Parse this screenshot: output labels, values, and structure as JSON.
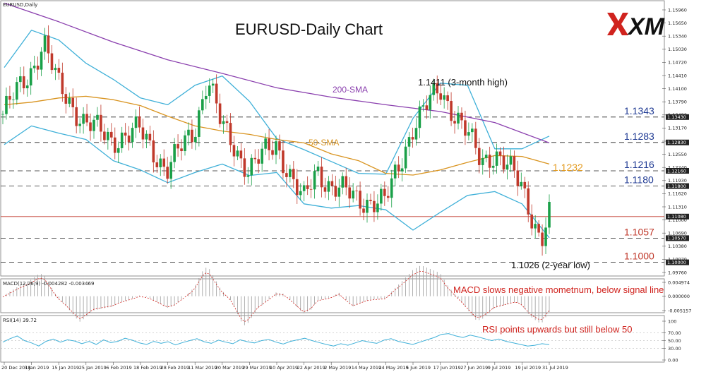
{
  "chart_data": [
    {
      "type": "candlestick",
      "symbol": "EURUSD,Daily",
      "title": "EURUSD-Daily Chart",
      "x_labels": [
        "20 Dec 2018",
        "3 Jan 2019",
        "15 Jan 2019",
        "25 Jan 2019",
        "6 Feb 2019",
        "18 Feb 2019",
        "28 Feb 2019",
        "11 Mar 2019",
        "20 Mar 2019",
        "29 Mar 2019",
        "10 Apr 2019",
        "22 Apr 2019",
        "2 May 2019",
        "14 May 2019",
        "24 May 2019",
        "5 Jun 2019",
        "17 Jun 2019",
        "27 Jun 2019",
        "9 Jul 2019",
        "19 Jul 2019",
        "31 Jul 2019"
      ],
      "y_ticks": [
        "1.15960",
        "1.15650",
        "1.15340",
        "1.15030",
        "1.14720",
        "1.14410",
        "1.14100",
        "1.13790",
        "1.13480",
        "1.13170",
        "1.12860",
        "1.12550",
        "1.12240",
        "1.11930",
        "1.11620",
        "1.11310",
        "1.11000",
        "1.10690",
        "1.10380",
        "1.10070",
        "1.09760"
      ],
      "ylim": [
        1.0976,
        1.1596
      ],
      "price_tags": [
        {
          "text": "1.13430",
          "value": 1.1343
        },
        {
          "text": "1.12830",
          "value": 1.1283
        },
        {
          "text": "1.12160",
          "value": 1.1216
        },
        {
          "text": "1.11800",
          "value": 1.118
        },
        {
          "text": "1.11080",
          "value": 1.1108
        },
        {
          "text": "1.10570",
          "value": 1.1057
        },
        {
          "text": "1.10000",
          "value": 1.1
        }
      ],
      "levels": [
        {
          "text": "1.1343",
          "value": 1.1343,
          "color": "#1f3a93"
        },
        {
          "text": "1.1283",
          "value": 1.1283,
          "color": "#1f3a93"
        },
        {
          "text": "1.1216",
          "value": 1.1216,
          "color": "#1f3a93"
        },
        {
          "text": "1.1180",
          "value": 1.118,
          "color": "#1f3a93"
        },
        {
          "text": "1.1057",
          "value": 1.1057,
          "color": "#c0392b"
        },
        {
          "text": "1.1000",
          "value": 1.1,
          "color": "#c0392b"
        }
      ],
      "current_price": 1.1108,
      "series": [
        {
          "name": "200-SMA",
          "color": "#8a3fae",
          "points": [
            [
              0,
              1.1612
            ],
            [
              2,
              1.1568
            ],
            [
              4,
              1.152
            ],
            [
              6,
              1.1478
            ],
            [
              8,
              1.1446
            ],
            [
              10,
              1.1412
            ],
            [
              12,
              1.139
            ],
            [
              14,
              1.1372
            ],
            [
              16,
              1.1356
            ],
            [
              18,
              1.133
            ],
            [
              20,
              1.1282
            ]
          ]
        },
        {
          "name": "50-SMA",
          "color": "#d99420",
          "points": [
            [
              0,
              1.1372
            ],
            [
              1,
              1.1378
            ],
            [
              2,
              1.1388
            ],
            [
              3,
              1.1392
            ],
            [
              4,
              1.1384
            ],
            [
              5,
              1.137
            ],
            [
              6,
              1.1345
            ],
            [
              7,
              1.1322
            ],
            [
              8,
              1.131
            ],
            [
              9,
              1.1302
            ],
            [
              10,
              1.129
            ],
            [
              11,
              1.1282
            ],
            [
              12,
              1.1256
            ],
            [
              13,
              1.124
            ],
            [
              14,
              1.121
            ],
            [
              15,
              1.1206
            ],
            [
              16,
              1.1218
            ],
            [
              17,
              1.1236
            ],
            [
              18,
              1.1252
            ],
            [
              19,
              1.125
            ],
            [
              20,
              1.1232
            ]
          ]
        },
        {
          "name": "Bollinger upper",
          "color": "#3fb0d8",
          "points": [
            [
              0,
              1.146
            ],
            [
              1,
              1.1548
            ],
            [
              2,
              1.1525
            ],
            [
              3,
              1.147
            ],
            [
              4,
              1.1432
            ],
            [
              5,
              1.1388
            ],
            [
              6,
              1.1372
            ],
            [
              7,
              1.1418
            ],
            [
              8,
              1.144
            ],
            [
              9,
              1.138
            ],
            [
              10,
              1.1292
            ],
            [
              11,
              1.1266
            ],
            [
              12,
              1.1238
            ],
            [
              13,
              1.121
            ],
            [
              14,
              1.1208
            ],
            [
              15,
              1.134
            ],
            [
              16,
              1.1423
            ],
            [
              17,
              1.1418
            ],
            [
              18,
              1.1268
            ],
            [
              19,
              1.1268
            ],
            [
              20,
              1.1298
            ]
          ]
        },
        {
          "name": "Bollinger lower",
          "color": "#3fb0d8",
          "points": [
            [
              0,
              1.1278
            ],
            [
              1,
              1.1322
            ],
            [
              2,
              1.1305
            ],
            [
              3,
              1.129
            ],
            [
              4,
              1.124
            ],
            [
              5,
              1.1218
            ],
            [
              6,
              1.1188
            ],
            [
              7,
              1.1212
            ],
            [
              8,
              1.1232
            ],
            [
              9,
              1.1205
            ],
            [
              10,
              1.1212
            ],
            [
              11,
              1.1138
            ],
            [
              12,
              1.1128
            ],
            [
              13,
              1.1134
            ],
            [
              14,
              1.1124
            ],
            [
              15,
              1.1076
            ],
            [
              16,
              1.1118
            ],
            [
              17,
              1.1158
            ],
            [
              18,
              1.1167
            ],
            [
              19,
              1.1138
            ],
            [
              20,
              1.1058
            ]
          ]
        }
      ]
    },
    {
      "type": "histogram",
      "label": "MACD(12,26,9) -0.004282 -0.003469",
      "y_ticks": [
        "0.004974",
        "0.000000",
        "-0.005157"
      ],
      "ylim": [
        -0.005157,
        0.004974
      ]
    },
    {
      "type": "line",
      "label": "RSI(14) 39.72",
      "y_ticks": [
        "100",
        "70.00",
        "50.00",
        "30.00",
        "0.00"
      ],
      "ylim": [
        0,
        100
      ],
      "values": [
        46,
        55,
        62,
        50,
        44,
        36,
        48,
        54,
        46,
        52,
        49,
        42,
        48,
        40,
        52,
        45,
        48,
        56,
        51,
        44,
        40,
        48,
        43,
        47,
        39,
        45,
        50,
        55,
        47,
        43,
        51,
        46,
        42,
        52,
        47,
        44,
        50,
        53,
        46,
        41,
        48,
        52,
        56,
        50,
        45,
        40,
        36,
        42,
        38,
        44,
        50,
        46,
        43,
        51,
        55,
        48,
        44,
        40,
        46,
        52,
        58,
        66,
        68,
        62,
        58,
        64,
        60,
        55,
        50,
        54,
        48,
        44,
        40,
        36,
        38,
        42,
        39.72
      ]
    }
  ],
  "annotations": {
    "high": "1.1411 (3-month high)",
    "low": "1.1026 (2-year low)",
    "sma200": "200-SMA",
    "sma50": "50-SMA",
    "sma50_value": "1.1232",
    "macd_note": "MACD slows negative mometnum, below signal line",
    "rsi_note": "RSI points upwards but still below 50"
  },
  "logo": "XM"
}
